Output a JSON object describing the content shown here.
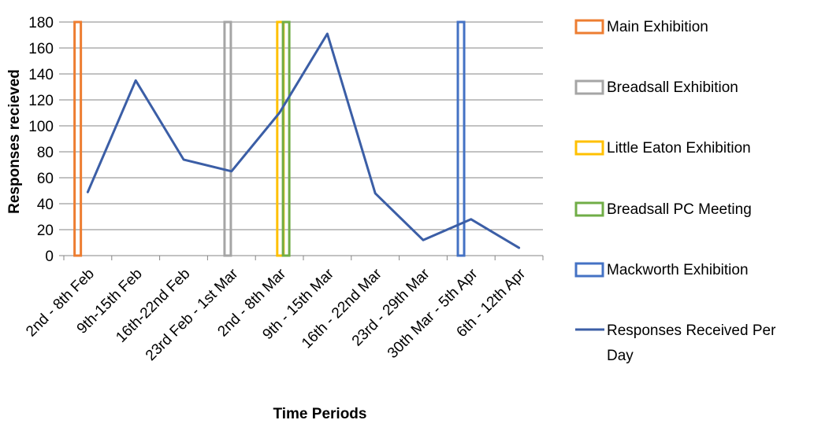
{
  "chart_data": {
    "type": "line",
    "title": "",
    "xlabel": "Time Periods",
    "ylabel": "Responses recieved",
    "ylim": [
      0,
      180
    ],
    "yticks": [
      0,
      20,
      40,
      60,
      80,
      100,
      120,
      140,
      160,
      180
    ],
    "grid": true,
    "legend_position": "right",
    "categories": [
      "2nd - 8th Feb",
      "9th-15th Feb",
      "16th-22nd Feb",
      "23rd Feb - 1st Mar",
      "2nd - 8th Mar",
      "9th - 15th Mar",
      "16th - 22nd Mar",
      "23rd - 29th Mar",
      "30th Mar - 5th Apr",
      "6th - 12th Apr"
    ],
    "series": [
      {
        "name": "Responses Received Per Day",
        "values": [
          49,
          135,
          74,
          65,
          110,
          171,
          48,
          12,
          28,
          6
        ],
        "color": "#3b5ea6"
      }
    ],
    "events": [
      {
        "name": "Main Exhibition",
        "x": -0.21,
        "color": "#ed7d31"
      },
      {
        "name": "Breadsall Exhibition",
        "x": 2.92,
        "color": "#a5a5a5"
      },
      {
        "name": "Little Eaton Exhibition",
        "x": 4.02,
        "color": "#ffc000"
      },
      {
        "name": "Breadsall PC Meeting",
        "x": 4.14,
        "color": "#70ad47"
      },
      {
        "name": "Mackworth Exhibition",
        "x": 7.79,
        "color": "#4472c4"
      }
    ],
    "legend": [
      {
        "label": "Main Exhibition",
        "kind": "box",
        "color": "#ed7d31"
      },
      {
        "label": "Breadsall Exhibition",
        "kind": "box",
        "color": "#a5a5a5"
      },
      {
        "label": "Little Eaton Exhibition",
        "kind": "box",
        "color": "#ffc000"
      },
      {
        "label": "Breadsall PC Meeting",
        "kind": "box",
        "color": "#70ad47"
      },
      {
        "label": "Mackworth Exhibition",
        "kind": "box",
        "color": "#4472c4"
      },
      {
        "label": "Responses Received Per Day",
        "kind": "line",
        "color": "#3b5ea6"
      }
    ],
    "gridline_color": "#868686"
  }
}
